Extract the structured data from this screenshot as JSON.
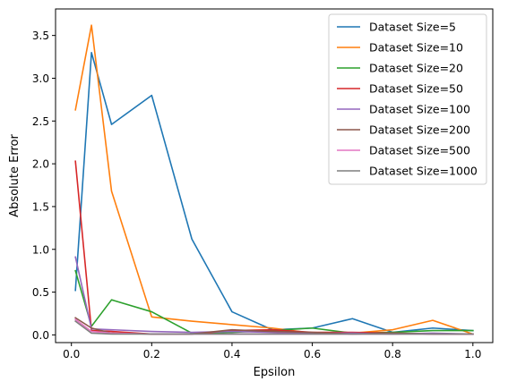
{
  "chart_data": {
    "type": "line",
    "title": "",
    "xlabel": "Epsilon",
    "ylabel": "Absolute Error",
    "x": [
      0.01,
      0.05,
      0.1,
      0.2,
      0.3,
      0.4,
      0.5,
      0.6,
      0.7,
      0.8,
      0.9,
      1.0
    ],
    "xlim": [
      -0.0395,
      1.0495
    ],
    "ylim": [
      -0.09,
      3.81
    ],
    "xticks": [
      0.0,
      0.2,
      0.4,
      0.6,
      0.8,
      1.0
    ],
    "xtick_labels": [
      "0.0",
      "0.2",
      "0.4",
      "0.6",
      "0.8",
      "1.0"
    ],
    "yticks": [
      0.0,
      0.5,
      1.0,
      1.5,
      2.0,
      2.5,
      3.0,
      3.5
    ],
    "ytick_labels": [
      "0.0",
      "0.5",
      "1.0",
      "1.5",
      "2.0",
      "2.5",
      "3.0",
      "3.5"
    ],
    "grid": false,
    "legend_position": "upper right",
    "series": [
      {
        "name": "Dataset Size=5",
        "color": "#1f77b4",
        "values": [
          0.52,
          3.3,
          2.46,
          2.8,
          1.12,
          0.27,
          0.06,
          0.08,
          0.19,
          0.03,
          0.08,
          0.05
        ]
      },
      {
        "name": "Dataset Size=10",
        "color": "#ff7f0e",
        "values": [
          2.63,
          3.62,
          1.68,
          0.21,
          0.16,
          0.12,
          0.08,
          0.02,
          0.02,
          0.06,
          0.17,
          0.01
        ]
      },
      {
        "name": "Dataset Size=20",
        "color": "#2ca02c",
        "values": [
          0.75,
          0.1,
          0.41,
          0.27,
          0.02,
          0.03,
          0.05,
          0.08,
          0.02,
          0.03,
          0.05,
          0.05
        ]
      },
      {
        "name": "Dataset Size=50",
        "color": "#d62728",
        "values": [
          2.03,
          0.05,
          0.04,
          0.01,
          0.01,
          0.05,
          0.06,
          0.03,
          0.03,
          0.02,
          0.01,
          0.01
        ]
      },
      {
        "name": "Dataset Size=100",
        "color": "#9467bd",
        "values": [
          0.91,
          0.07,
          0.06,
          0.04,
          0.03,
          0.04,
          0.03,
          0.02,
          0.02,
          0.01,
          0.02,
          0.01
        ]
      },
      {
        "name": "Dataset Size=200",
        "color": "#8c564b",
        "values": [
          0.2,
          0.08,
          0.02,
          0.01,
          0.01,
          0.06,
          0.04,
          0.03,
          0.01,
          0.02,
          0.01,
          0.01
        ]
      },
      {
        "name": "Dataset Size=500",
        "color": "#e377c2",
        "values": [
          0.18,
          0.04,
          0.02,
          0.01,
          0.01,
          0.01,
          0.01,
          0.01,
          0.01,
          0.01,
          0.01,
          0.01
        ]
      },
      {
        "name": "Dataset Size=1000",
        "color": "#7f7f7f",
        "values": [
          0.16,
          0.02,
          0.01,
          0.01,
          0.01,
          0.01,
          0.01,
          0.01,
          0.01,
          0.01,
          0.01,
          0.01
        ]
      }
    ]
  }
}
